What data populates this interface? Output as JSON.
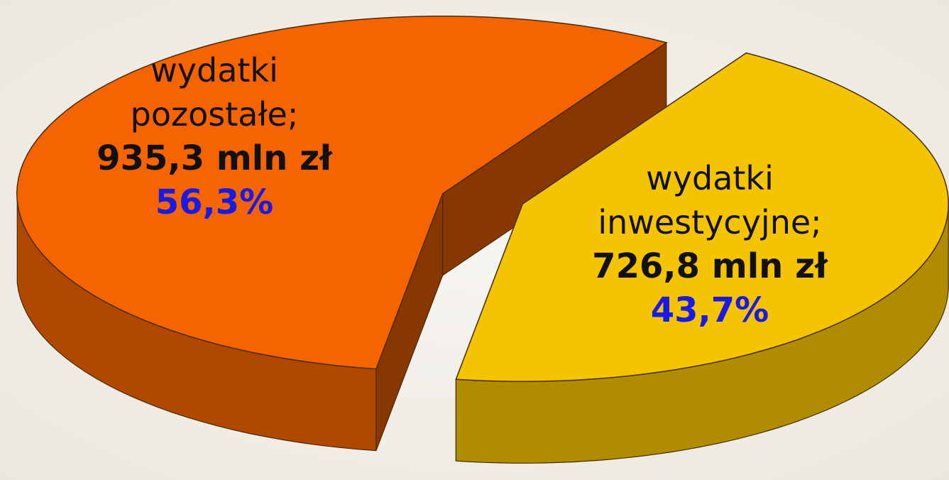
{
  "chart_data": {
    "type": "pie",
    "categories": [
      "wydatki pozostałe;",
      "wydatki inwestycyjne;"
    ],
    "values": [
      56.3,
      43.7
    ],
    "value_labels": [
      "56,3%",
      "43,7%"
    ],
    "amounts": [
      935.3,
      726.8
    ],
    "amount_labels": [
      "935,3 mln zł",
      "726,8 mln zł"
    ],
    "colors": [
      "#f56400",
      "#f5c400"
    ]
  }
}
